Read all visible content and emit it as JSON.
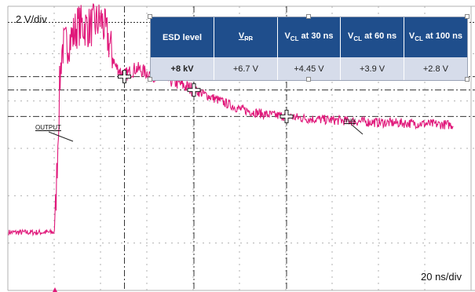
{
  "scope": {
    "vertical_scale": "2 V/div",
    "time_scale": "20 ns/div",
    "trace_label": "OUTPUT",
    "max_label": "max",
    "trace_color": "#e0187a",
    "grid_color": "#b0b0b0",
    "cursor_line_color": "#333333"
  },
  "table": {
    "header_bg": "#1f4e8c",
    "row_bg": "#d6dcea",
    "headers": [
      {
        "main": "ESD level",
        "sub": "",
        "tail": ""
      },
      {
        "main": "V",
        "sub": "PP",
        "tail": ""
      },
      {
        "main": "V",
        "sub": "CL",
        "tail": " at 30 ns"
      },
      {
        "main": "V",
        "sub": "CL",
        "tail": " at 60 ns"
      },
      {
        "main": "V",
        "sub": "CL",
        "tail": " at 100 ns"
      }
    ],
    "row": [
      "+8 kV",
      "+6.7 V",
      "+4.45 V",
      "+3.9 V",
      "+2.8 V"
    ]
  },
  "chart_data": {
    "type": "line",
    "x_unit": "ns",
    "y_unit": "V",
    "x_per_div": 20,
    "y_per_div": 2,
    "max_level": 6.7,
    "cursor_levels": [
      4.45,
      3.9,
      2.8
    ],
    "markers": [
      {
        "x_ns": 30,
        "y_v": 4.45
      },
      {
        "x_ns": 60,
        "y_v": 3.9
      },
      {
        "x_ns": 100,
        "y_v": 2.8
      }
    ],
    "series": [
      {
        "x": [
          -20,
          -0.5,
          0,
          1,
          2,
          3,
          5,
          8,
          10,
          15,
          20,
          23,
          26,
          30,
          35,
          40,
          50,
          55,
          60,
          70,
          80,
          90,
          100,
          110,
          120,
          130,
          140,
          160,
          172
        ],
        "y": [
          -2.0,
          -2.0,
          -1.8,
          1.0,
          4.0,
          5.6,
          5.8,
          6.2,
          6.6,
          6.5,
          6.8,
          6.0,
          4.9,
          4.5,
          4.8,
          4.6,
          4.3,
          4.1,
          3.9,
          3.5,
          3.1,
          2.9,
          2.8,
          2.7,
          2.65,
          2.6,
          2.55,
          2.5,
          2.45
        ]
      }
    ]
  }
}
